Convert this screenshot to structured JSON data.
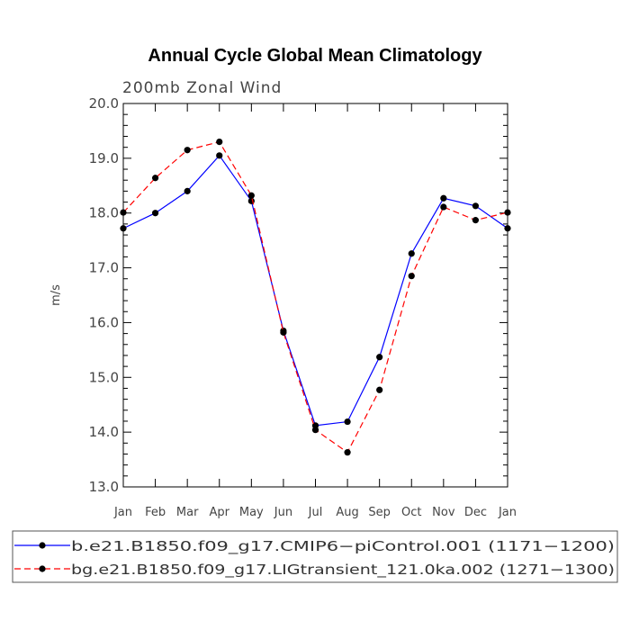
{
  "chart_data": {
    "type": "line",
    "title": "Annual Cycle Global Mean Climatology",
    "subtitle": "200mb Zonal Wind",
    "xlabel": "",
    "ylabel": "m/s",
    "categories": [
      "Jan",
      "Feb",
      "Mar",
      "Apr",
      "May",
      "Jun",
      "Jul",
      "Aug",
      "Sep",
      "Oct",
      "Nov",
      "Dec",
      "Jan"
    ],
    "ylim": [
      13.0,
      20.0
    ],
    "yticks": [
      "13.0",
      "14.0",
      "15.0",
      "16.0",
      "17.0",
      "18.0",
      "19.0",
      "20.0"
    ],
    "series": [
      {
        "name": "b.e21.B1850.f09_g17.CMIP6−piControl.001 (1171−1200)",
        "color": "#0000ff",
        "dash": "solid",
        "values": [
          17.72,
          18.0,
          18.4,
          19.05,
          18.22,
          15.85,
          14.12,
          14.19,
          15.37,
          17.26,
          18.27,
          18.13,
          17.72
        ]
      },
      {
        "name": "bg.e21.B1850.f09_g17.LIGtransient_121.0ka.002 (1271−1300)",
        "color": "#ff0000",
        "dash": "dashed",
        "values": [
          18.01,
          18.64,
          19.15,
          19.3,
          18.32,
          15.82,
          14.04,
          13.63,
          14.77,
          16.85,
          18.11,
          17.87,
          18.01
        ]
      }
    ]
  }
}
